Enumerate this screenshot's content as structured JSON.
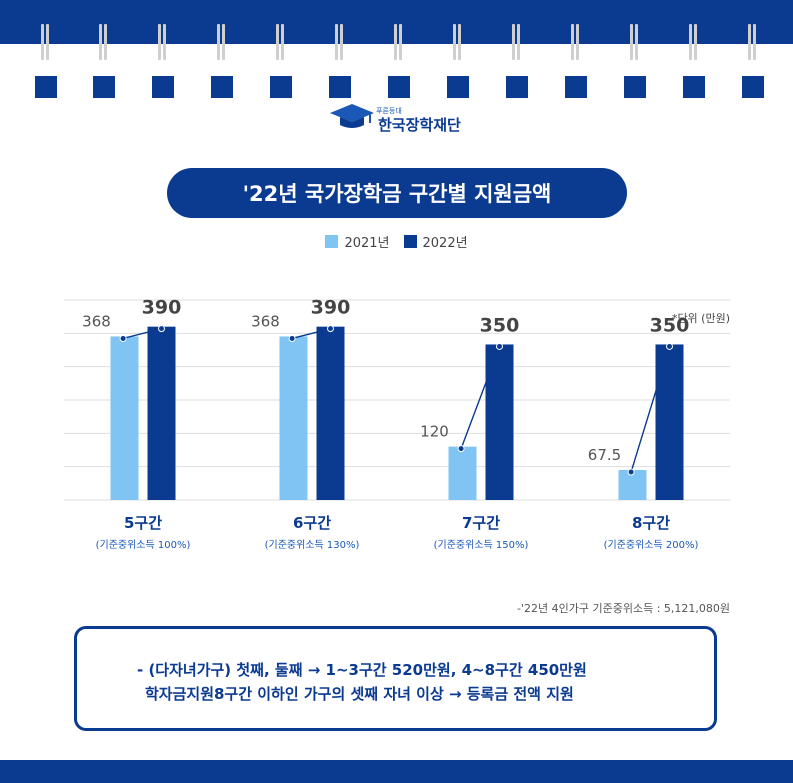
{
  "logo": {
    "tagline": "푸른등대",
    "name": "한국장학재단"
  },
  "title": "'22년 국가장학금 구간별 지원금액",
  "legend": {
    "s2021": "2021년",
    "s2022": "2022년"
  },
  "unit_note": "*단위 (만원)",
  "footnote": "-'22년 4인가구 기준중위소득 : 5,121,080원",
  "colors": {
    "brand": "#0b3a91",
    "light": "#7fc4f3",
    "dark": "#0b3a91"
  },
  "chart_data": {
    "type": "bar",
    "categories": [
      "5구간",
      "6구간",
      "7구간",
      "8구간"
    ],
    "category_notes": [
      "(기준중위소득 100%)",
      "(기준중위소득 130%)",
      "(기준중위소득 150%)",
      "(기준중위소득 200%)"
    ],
    "series": [
      {
        "name": "2021년",
        "values": [
          368,
          368,
          120,
          67.5
        ],
        "labels": [
          "368",
          "368",
          "120",
          "67.5"
        ]
      },
      {
        "name": "2022년",
        "values": [
          390,
          390,
          350,
          350
        ],
        "labels": [
          "390",
          "390",
          "350",
          "350"
        ]
      }
    ],
    "ylim": [
      0,
      450
    ],
    "grid": true
  },
  "note": {
    "line1": "- (다자녀가구) 첫째, 둘째 → 1~3구간 520만원, 4~8구간 450만원",
    "line2": "학자금지원8구간 이하인 가구의 셋째 자녀 이상 → 등록금 전액 지원"
  }
}
